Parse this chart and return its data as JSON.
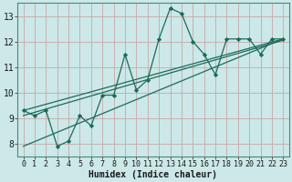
{
  "xlabel": "Humidex (Indice chaleur)",
  "bg_color": "#cce8e8",
  "grid_color": "#c8a8a8",
  "line_color": "#1a6b5a",
  "xlim": [
    -0.5,
    23.5
  ],
  "ylim": [
    7.5,
    13.5
  ],
  "xticks": [
    0,
    1,
    2,
    3,
    4,
    5,
    6,
    7,
    8,
    9,
    10,
    11,
    12,
    13,
    14,
    15,
    16,
    17,
    18,
    19,
    20,
    21,
    22,
    23
  ],
  "yticks": [
    8,
    9,
    10,
    11,
    12,
    13
  ],
  "data_x": [
    0,
    1,
    2,
    3,
    4,
    5,
    6,
    7,
    8,
    9,
    10,
    11,
    12,
    13,
    14,
    15,
    16,
    17,
    18,
    19,
    20,
    21,
    22,
    23
  ],
  "data_y": [
    9.3,
    9.1,
    9.3,
    7.9,
    8.1,
    9.1,
    8.7,
    9.9,
    9.9,
    11.5,
    10.1,
    10.5,
    12.1,
    13.3,
    13.1,
    12.0,
    11.5,
    10.7,
    12.1,
    12.1,
    12.1,
    11.5,
    12.1,
    12.1
  ],
  "trend1_x": [
    0,
    23
  ],
  "trend1_y": [
    9.1,
    12.05
  ],
  "trend2_x": [
    0,
    23
  ],
  "trend2_y": [
    9.3,
    12.1
  ],
  "trend3_x": [
    0,
    23
  ],
  "trend3_y": [
    7.9,
    12.1
  ],
  "xlabel_fontsize": 7,
  "tick_fontsize": 6,
  "ytick_fontsize": 7
}
